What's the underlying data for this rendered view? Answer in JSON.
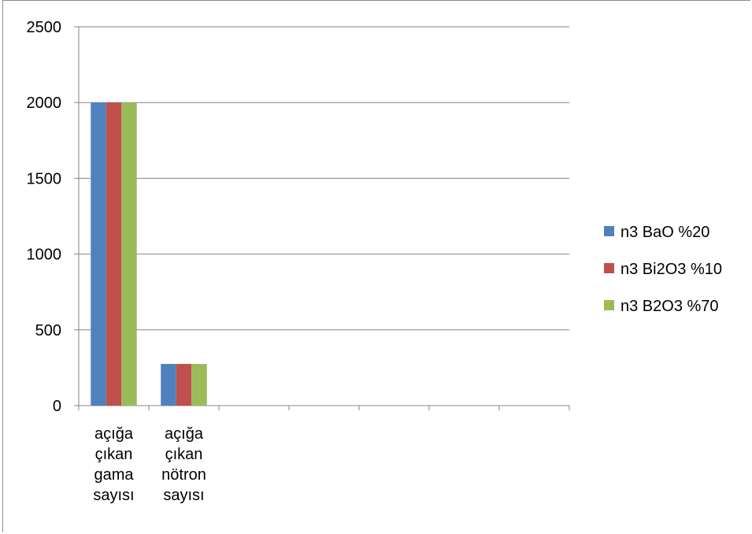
{
  "chart_data": {
    "type": "bar",
    "title": "",
    "xlabel": "",
    "ylabel": "",
    "ylim": [
      0,
      2500
    ],
    "yticks": [
      0,
      500,
      1000,
      1500,
      2000,
      2500
    ],
    "grid": true,
    "legend_position": "right",
    "categories": [
      [
        "açığa",
        "çıkan",
        "gama",
        "sayısı"
      ],
      [
        "açığa",
        "çıkan",
        "nötron",
        "sayısı"
      ],
      [
        ""
      ],
      [
        ""
      ],
      [
        ""
      ],
      [
        ""
      ],
      [
        ""
      ]
    ],
    "series": [
      {
        "name": "n3 BaO %20",
        "color": "#4f81bd",
        "values": [
          2000,
          275,
          null,
          null,
          null,
          null,
          null
        ]
      },
      {
        "name": "n3 Bi2O3 %10",
        "color": "#c0504d",
        "values": [
          2000,
          275,
          null,
          null,
          null,
          null,
          null
        ]
      },
      {
        "name": "n3 B2O3 %70",
        "color": "#9bbb59",
        "values": [
          2000,
          275,
          null,
          null,
          null,
          null,
          null
        ]
      }
    ]
  }
}
